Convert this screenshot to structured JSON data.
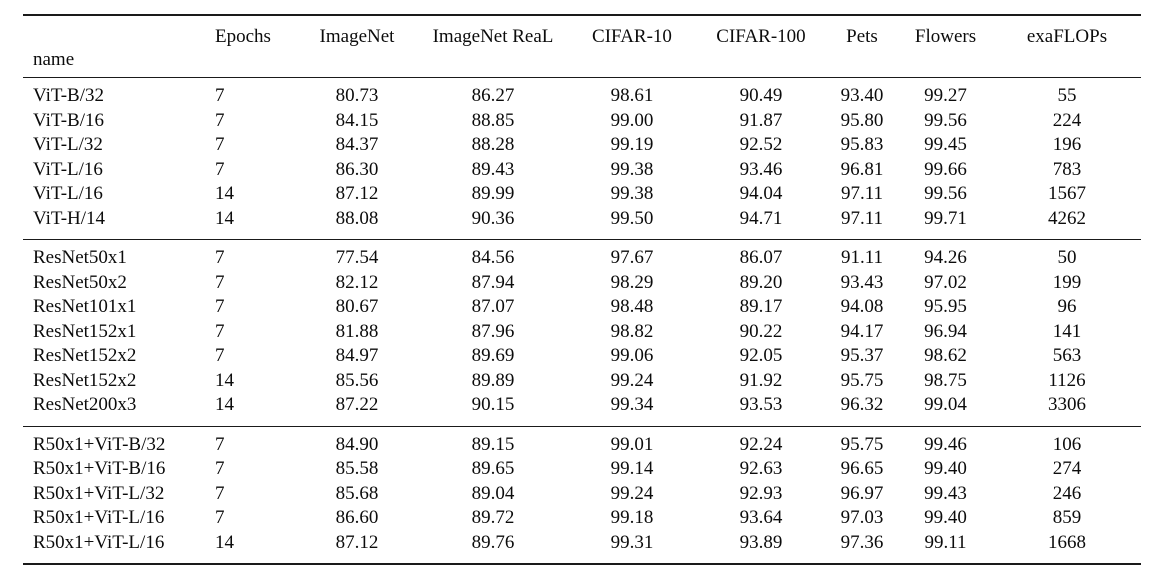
{
  "table": {
    "name_header": "name",
    "columns": [
      "Epochs",
      "ImageNet",
      "ImageNet ReaL",
      "CIFAR-10",
      "CIFAR-100",
      "Pets",
      "Flowers",
      "exaFLOPs"
    ],
    "sections": [
      {
        "group": "vit",
        "rows": [
          {
            "name": "ViT-B/32",
            "values": [
              "7",
              "80.73",
              "86.27",
              "98.61",
              "90.49",
              "93.40",
              "99.27",
              "55"
            ]
          },
          {
            "name": "ViT-B/16",
            "values": [
              "7",
              "84.15",
              "88.85",
              "99.00",
              "91.87",
              "95.80",
              "99.56",
              "224"
            ]
          },
          {
            "name": "ViT-L/32",
            "values": [
              "7",
              "84.37",
              "88.28",
              "99.19",
              "92.52",
              "95.83",
              "99.45",
              "196"
            ]
          },
          {
            "name": "ViT-L/16",
            "values": [
              "7",
              "86.30",
              "89.43",
              "99.38",
              "93.46",
              "96.81",
              "99.66",
              "783"
            ]
          },
          {
            "name": "ViT-L/16",
            "values": [
              "14",
              "87.12",
              "89.99",
              "99.38",
              "94.04",
              "97.11",
              "99.56",
              "1567"
            ]
          },
          {
            "name": "ViT-H/14",
            "values": [
              "14",
              "88.08",
              "90.36",
              "99.50",
              "94.71",
              "97.11",
              "99.71",
              "4262"
            ]
          }
        ]
      },
      {
        "group": "resnet",
        "rows": [
          {
            "name": "ResNet50x1",
            "values": [
              "7",
              "77.54",
              "84.56",
              "97.67",
              "86.07",
              "91.11",
              "94.26",
              "50"
            ]
          },
          {
            "name": "ResNet50x2",
            "values": [
              "7",
              "82.12",
              "87.94",
              "98.29",
              "89.20",
              "93.43",
              "97.02",
              "199"
            ]
          },
          {
            "name": "ResNet101x1",
            "values": [
              "7",
              "80.67",
              "87.07",
              "98.48",
              "89.17",
              "94.08",
              "95.95",
              "96"
            ]
          },
          {
            "name": "ResNet152x1",
            "values": [
              "7",
              "81.88",
              "87.96",
              "98.82",
              "90.22",
              "94.17",
              "96.94",
              "141"
            ]
          },
          {
            "name": "ResNet152x2",
            "values": [
              "7",
              "84.97",
              "89.69",
              "99.06",
              "92.05",
              "95.37",
              "98.62",
              "563"
            ]
          },
          {
            "name": "ResNet152x2",
            "values": [
              "14",
              "85.56",
              "89.89",
              "99.24",
              "91.92",
              "95.75",
              "98.75",
              "1126"
            ]
          },
          {
            "name": "ResNet200x3",
            "values": [
              "14",
              "87.22",
              "90.15",
              "99.34",
              "93.53",
              "96.32",
              "99.04",
              "3306"
            ]
          }
        ]
      },
      {
        "group": "hybrid",
        "rows": [
          {
            "name": "R50x1+ViT-B/32",
            "values": [
              "7",
              "84.90",
              "89.15",
              "99.01",
              "92.24",
              "95.75",
              "99.46",
              "106"
            ]
          },
          {
            "name": "R50x1+ViT-B/16",
            "values": [
              "7",
              "85.58",
              "89.65",
              "99.14",
              "92.63",
              "96.65",
              "99.40",
              "274"
            ]
          },
          {
            "name": "R50x1+ViT-L/32",
            "values": [
              "7",
              "85.68",
              "89.04",
              "99.24",
              "92.93",
              "96.97",
              "99.43",
              "246"
            ]
          },
          {
            "name": "R50x1+ViT-L/16",
            "values": [
              "7",
              "86.60",
              "89.72",
              "99.18",
              "93.64",
              "97.03",
              "99.40",
              "859"
            ]
          },
          {
            "name": "R50x1+ViT-L/16",
            "values": [
              "14",
              "87.12",
              "89.76",
              "99.31",
              "93.89",
              "97.36",
              "99.11",
              "1668"
            ]
          }
        ]
      }
    ],
    "colors": {
      "text": "#0c0c0c",
      "rule": "#1a1a1a",
      "background": "#ffffff"
    }
  }
}
